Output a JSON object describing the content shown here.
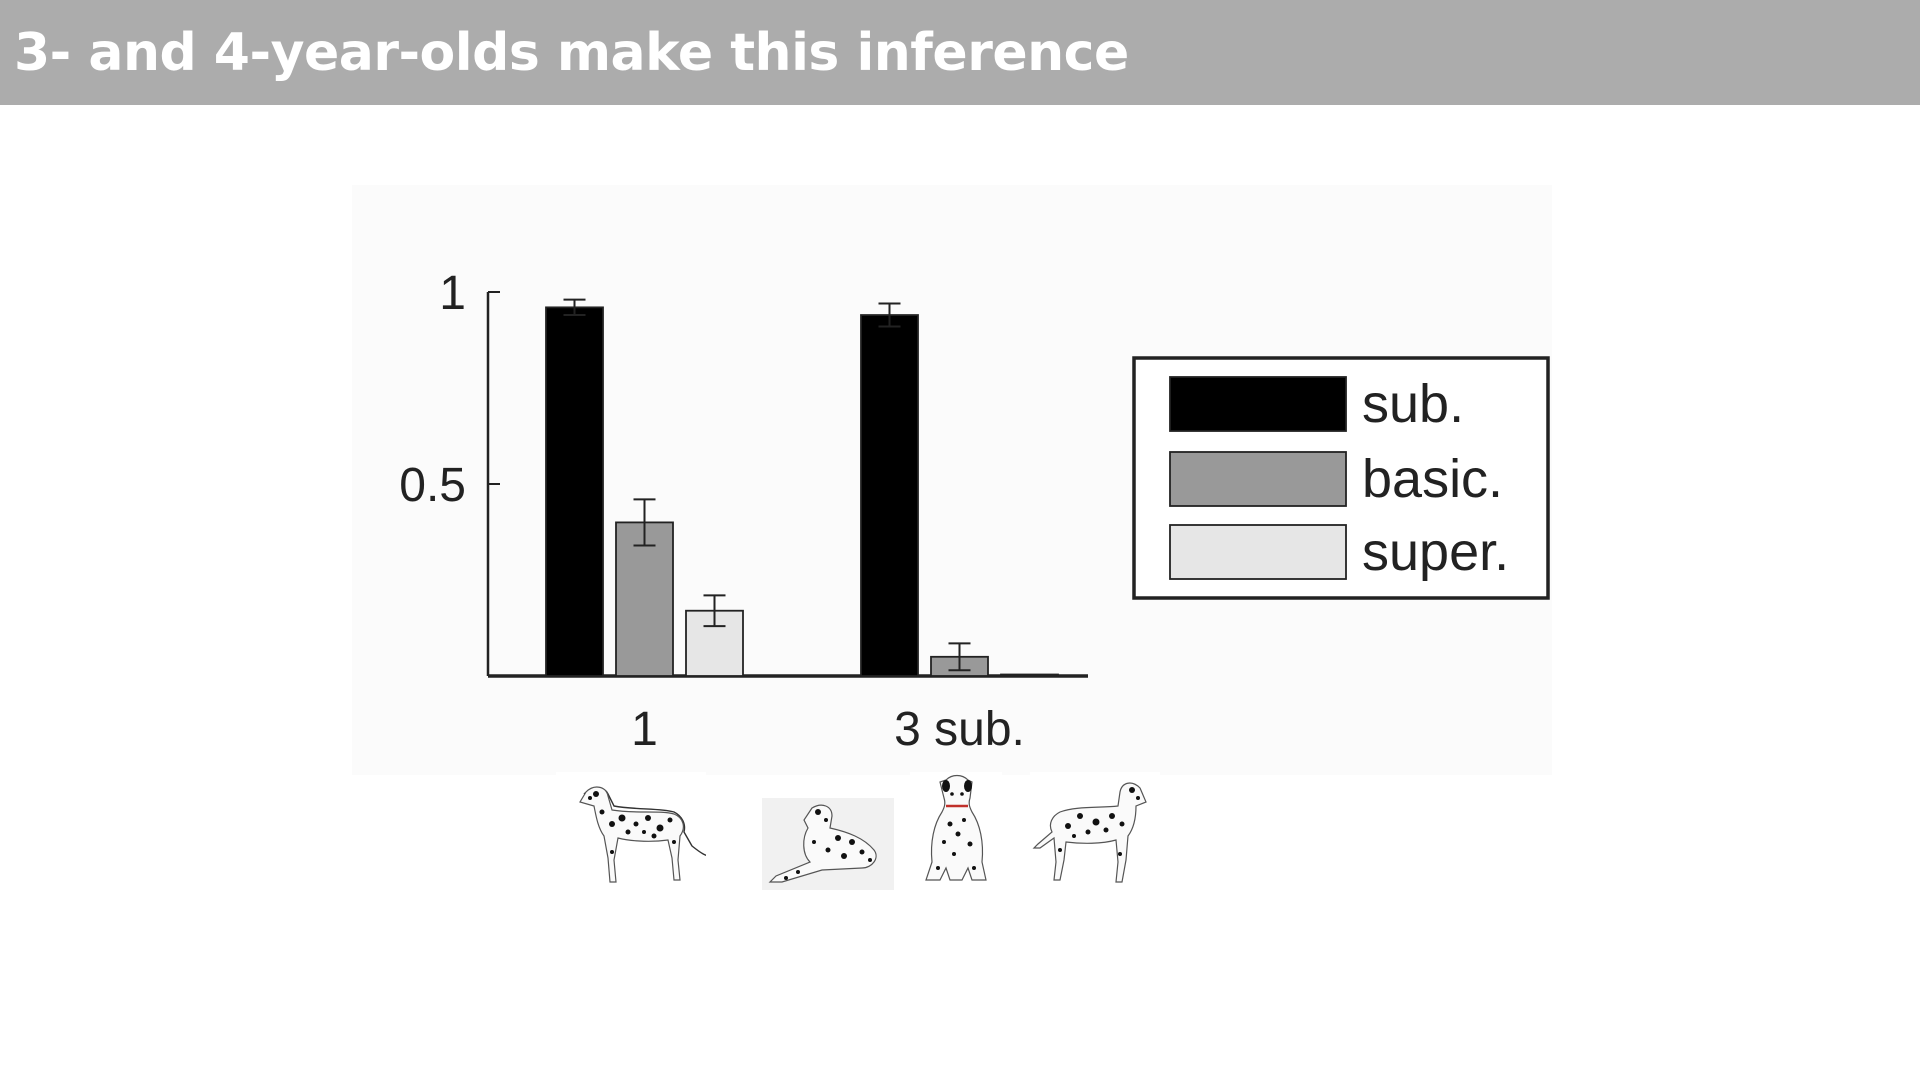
{
  "slide": {
    "title": "3- and 4-year-olds make this inference"
  },
  "chart_data": {
    "type": "bar",
    "categories": [
      "1",
      "3 sub."
    ],
    "series": [
      {
        "name": "sub.",
        "color": "#000000",
        "values": [
          0.96,
          0.94
        ],
        "errors": [
          0.02,
          0.03
        ]
      },
      {
        "name": "basic.",
        "color": "#999999",
        "values": [
          0.4,
          0.05
        ],
        "errors": [
          0.06,
          0.035
        ]
      },
      {
        "name": "super.",
        "color": "#e6e6e6",
        "values": [
          0.17,
          0.0
        ],
        "errors": [
          0.04,
          0.0
        ]
      }
    ],
    "yticks": [
      "0.5",
      "1"
    ],
    "ylim": [
      0,
      1
    ],
    "legend_position": "right",
    "xlabel": "",
    "ylabel": ""
  },
  "images": {
    "example_icon": "dalmatian-standing-icon",
    "subordinate_icons": [
      "dalmatian-lying-icon",
      "dalmatian-sitting-icon",
      "dalmatian-standing-right-icon"
    ]
  }
}
